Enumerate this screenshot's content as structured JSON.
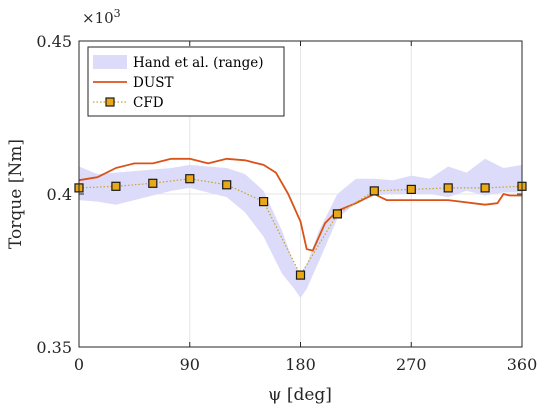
{
  "chart_data": {
    "type": "line",
    "xlabel": "ψ [deg]",
    "ylabel": "Torque [Nm]",
    "multiplier": "×10",
    "multiplier_exp": "3",
    "xlim": [
      0,
      360
    ],
    "ylim": [
      0.35,
      0.45
    ],
    "xticks": [
      0,
      90,
      180,
      270,
      360
    ],
    "xtick_labels": [
      "0",
      "90",
      "180",
      "270",
      "360"
    ],
    "yticks": [
      0.35,
      0.4,
      0.45
    ],
    "ytick_labels": [
      "0.35",
      "0.4",
      "0.45"
    ],
    "grid": true,
    "legend_position": "top-left",
    "series": [
      {
        "name": "Hand et al. (range)",
        "kind": "band",
        "color": "#dcdcfa",
        "x": [
          0,
          15,
          30,
          45,
          60,
          75,
          90,
          105,
          120,
          135,
          150,
          165,
          175,
          180,
          185,
          195,
          210,
          225,
          240,
          255,
          270,
          285,
          300,
          315,
          330,
          345,
          360
        ],
        "upper": [
          0.409,
          0.4065,
          0.407,
          0.4075,
          0.408,
          0.4085,
          0.4095,
          0.409,
          0.4085,
          0.4065,
          0.401,
          0.388,
          0.377,
          0.374,
          0.377,
          0.388,
          0.4,
          0.405,
          0.405,
          0.4045,
          0.406,
          0.405,
          0.409,
          0.407,
          0.4115,
          0.4085,
          0.4095
        ],
        "lower": [
          0.398,
          0.3975,
          0.3965,
          0.398,
          0.3995,
          0.401,
          0.402,
          0.4005,
          0.399,
          0.394,
          0.386,
          0.374,
          0.369,
          0.366,
          0.369,
          0.378,
          0.392,
          0.397,
          0.3995,
          0.4,
          0.4,
          0.4,
          0.399,
          0.401,
          0.3995,
          0.4005,
          0.4005
        ]
      },
      {
        "name": "DUST",
        "kind": "line",
        "color": "#d95319",
        "x": [
          0,
          15,
          30,
          45,
          60,
          75,
          90,
          105,
          120,
          135,
          150,
          160,
          170,
          180,
          185,
          190,
          195,
          200,
          210,
          225,
          240,
          250,
          270,
          300,
          330,
          340,
          345,
          350,
          360
        ],
        "y": [
          0.4045,
          0.4055,
          0.4085,
          0.41,
          0.41,
          0.4115,
          0.4115,
          0.41,
          0.4115,
          0.411,
          0.4095,
          0.407,
          0.4,
          0.391,
          0.382,
          0.3815,
          0.386,
          0.3905,
          0.3945,
          0.397,
          0.4,
          0.398,
          0.398,
          0.398,
          0.3965,
          0.397,
          0.4,
          0.3995,
          0.3995
        ]
      },
      {
        "name": "CFD",
        "kind": "line-markers",
        "color": "#c9a227",
        "marker_color": "#eaa816",
        "x": [
          0,
          30,
          60,
          90,
          120,
          150,
          180,
          210,
          240,
          270,
          300,
          330,
          360
        ],
        "y": [
          0.402,
          0.4025,
          0.4035,
          0.405,
          0.403,
          0.3975,
          0.3735,
          0.3935,
          0.401,
          0.4015,
          0.402,
          0.402,
          0.4025
        ]
      }
    ]
  }
}
